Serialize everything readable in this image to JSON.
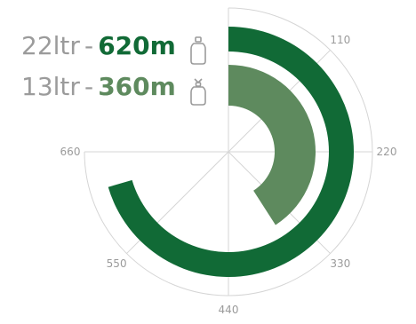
{
  "chart_data": {
    "type": "radial-bar",
    "max": 660,
    "ticks": [
      "110",
      "220",
      "330",
      "440",
      "550",
      "660"
    ],
    "tick_values": [
      110,
      220,
      330,
      440,
      550,
      660
    ],
    "series": [
      {
        "name": "22ltr",
        "value": 620,
        "value_label": "620m",
        "color": "#116a36",
        "icon": "large-bottle-icon"
      },
      {
        "name": "13ltr",
        "value": 360,
        "value_label": "360m",
        "color": "#5e8a5e",
        "icon": "small-bottle-icon"
      }
    ],
    "grid": true,
    "colors": {
      "grid": "#d5d5d5",
      "tick_text": "#9b9b9b",
      "legend_text": "#9b9b9b"
    }
  },
  "legend": {
    "separator": "-"
  }
}
